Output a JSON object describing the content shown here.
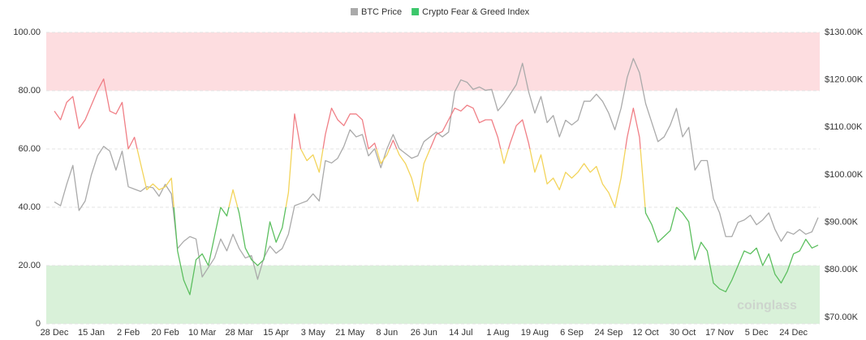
{
  "chart_data": {
    "type": "line",
    "watermark": "coinglass",
    "categories": [
      "28 Dec",
      null,
      null,
      null,
      null,
      null,
      "15 Jan",
      null,
      null,
      null,
      null,
      null,
      "2 Feb",
      null,
      null,
      null,
      null,
      null,
      "20 Feb",
      null,
      null,
      null,
      null,
      null,
      "10 Mar",
      null,
      null,
      null,
      null,
      null,
      "28 Mar",
      null,
      null,
      null,
      null,
      null,
      "15 Apr",
      null,
      null,
      null,
      null,
      null,
      "3 May",
      null,
      null,
      null,
      null,
      null,
      "21 May",
      null,
      null,
      null,
      null,
      null,
      "8 Jun",
      null,
      null,
      null,
      null,
      null,
      "26 Jun",
      null,
      null,
      null,
      null,
      null,
      "14 Jul",
      null,
      null,
      null,
      null,
      null,
      "1 Aug",
      null,
      null,
      null,
      null,
      null,
      "19 Aug",
      null,
      null,
      null,
      null,
      null,
      "6 Sep",
      null,
      null,
      null,
      null,
      null,
      "24 Sep",
      null,
      null,
      null,
      null,
      null,
      "12 Oct",
      null,
      null,
      null,
      null,
      null,
      "30 Oct",
      null,
      null,
      null,
      null,
      null,
      "17 Nov",
      null,
      null,
      null,
      null,
      null,
      "5 Dec",
      null,
      null,
      null,
      null,
      null,
      "24 Dec",
      null,
      null,
      null,
      null
    ],
    "series": [
      {
        "name": "BTC Price",
        "color": "#aaaaaa",
        "axis": "y2",
        "values": [
          94300,
          93500,
          98000,
          102000,
          92500,
          94500,
          100000,
          104000,
          106000,
          105000,
          101000,
          105000,
          97500,
          97000,
          96500,
          97500,
          97300,
          95500,
          98000,
          96000,
          84500,
          86000,
          87000,
          86500,
          78500,
          80500,
          82500,
          86500,
          84000,
          87500,
          84500,
          82500,
          83000,
          78000,
          82500,
          85000,
          83500,
          84500,
          87500,
          93500,
          94000,
          94500,
          96000,
          94500,
          103000,
          102500,
          103500,
          106000,
          109500,
          108000,
          108500,
          104000,
          105500,
          101500,
          105500,
          108500,
          105500,
          104500,
          103500,
          104000,
          107000,
          108000,
          109000,
          108000,
          109000,
          117500,
          120000,
          119500,
          118000,
          118500,
          117800,
          118000,
          113500,
          115000,
          117000,
          119000,
          123500,
          117500,
          113000,
          116500,
          111000,
          112500,
          108000,
          111500,
          110500,
          111500,
          115500,
          115500,
          117000,
          115500,
          113000,
          109500,
          114000,
          120500,
          124500,
          121500,
          115000,
          111000,
          107000,
          108000,
          110500,
          114000,
          108000,
          110000,
          101000,
          103000,
          103000,
          95000,
          92000,
          87000,
          87000,
          90000,
          90500,
          91500,
          89500,
          90500,
          92000,
          88500,
          86000,
          88000,
          87500,
          88500,
          87500,
          88000,
          91000
        ]
      },
      {
        "name": "Crypto Fear & Greed Index",
        "color": "#3cc76b",
        "color_zones": [
          {
            "from": 60,
            "to": 100,
            "color": "#f07f86"
          },
          {
            "from": 40,
            "to": 60,
            "color": "#f3d45a"
          },
          {
            "from": 0,
            "to": 40,
            "color": "#5cbf5f"
          }
        ],
        "values": [
          73,
          70,
          76,
          78,
          67,
          70,
          75,
          80,
          84,
          73,
          72,
          76,
          60,
          64,
          55,
          46,
          48,
          46,
          47,
          50,
          25,
          15,
          10,
          22,
          24,
          20,
          30,
          40,
          37,
          46,
          38,
          26,
          22,
          20,
          22,
          35,
          28,
          33,
          45,
          72,
          60,
          56,
          58,
          52,
          65,
          74,
          70,
          68,
          72,
          72,
          70,
          60,
          62,
          55,
          58,
          63,
          58,
          55,
          50,
          42,
          55,
          60,
          65,
          66,
          70,
          74,
          73,
          75,
          74,
          69,
          70,
          70,
          64,
          55,
          62,
          68,
          70,
          62,
          52,
          58,
          48,
          50,
          46,
          52,
          50,
          52,
          55,
          52,
          54,
          48,
          45,
          40,
          50,
          64,
          74,
          64,
          38,
          34,
          28,
          30,
          32,
          40,
          38,
          35,
          22,
          28,
          25,
          14,
          12,
          11,
          15,
          20,
          25,
          24,
          26,
          20,
          24,
          17,
          14,
          18,
          24,
          25,
          29,
          26,
          27
        ]
      }
    ],
    "bands": [
      {
        "from": 80,
        "to": 100,
        "color": "#fddde0"
      },
      {
        "from": 0,
        "to": 20,
        "color": "#d9f1d9"
      }
    ],
    "ylim": [
      0,
      100
    ],
    "yticks": [
      0,
      {
        "value": 20,
        "label": "20.00"
      },
      {
        "value": 40,
        "label": "40.00"
      },
      {
        "value": 60,
        "label": "60.00"
      },
      {
        "value": 80,
        "label": "80.00"
      },
      {
        "value": 100,
        "label": "100.00"
      }
    ],
    "y2lim": [
      70000,
      130000
    ],
    "y2ticks": [
      {
        "value": 70000,
        "label": "$70.00K"
      },
      {
        "value": 80000,
        "label": "$80.00K"
      },
      {
        "value": 90000,
        "label": "$90.00K"
      },
      {
        "value": 100000,
        "label": "$100.00K"
      },
      {
        "value": 110000,
        "label": "$110.00K"
      },
      {
        "value": 120000,
        "label": "$120.00K"
      },
      {
        "value": 130000,
        "label": "$130.00K"
      }
    ],
    "grid": true
  }
}
